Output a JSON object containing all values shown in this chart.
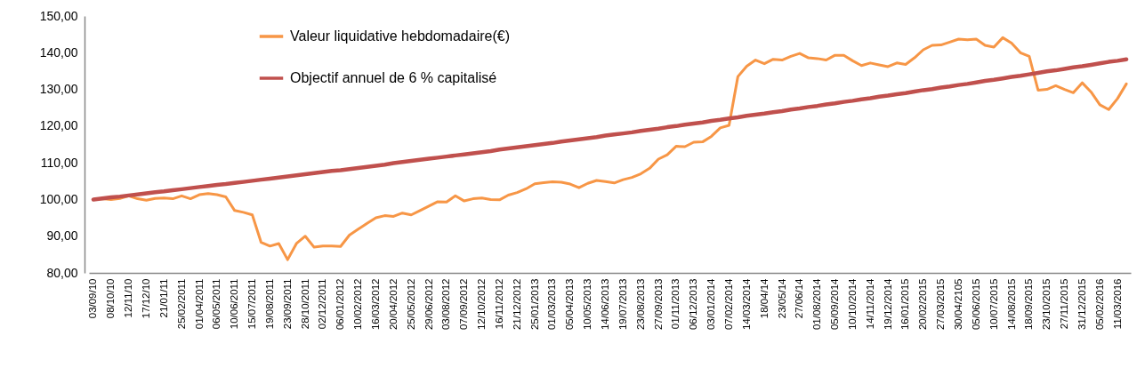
{
  "chart_data": {
    "type": "line",
    "categories": [
      "03/09/10",
      null,
      "08/10/10",
      null,
      "12/11/10",
      null,
      "17/12/10",
      null,
      "21/01/11",
      null,
      "25/02/2011",
      null,
      "01/04/2011",
      null,
      "06/05/2011",
      null,
      "10/06/2011",
      null,
      "15/07/2011",
      null,
      "19/08/2011",
      null,
      "23/09/2011",
      null,
      "28/10/2011",
      null,
      "02/12/2011",
      null,
      "06/01/2012",
      null,
      "10/02/2012",
      null,
      "16/03/2012",
      null,
      "20/04/2012",
      null,
      "25/05/2012",
      null,
      "29/06/2012",
      null,
      "03/08/2012",
      null,
      "07/09/2012",
      null,
      "12/10/2012",
      null,
      "16/11/2012",
      null,
      "21/12/2012",
      null,
      "25/01/2013",
      null,
      "01/03/2013",
      null,
      "05/04/2013",
      null,
      "10/05/2013",
      null,
      "14/06/2013",
      null,
      "19/07/2013",
      null,
      "23/08/2013",
      null,
      "27/09/2013",
      null,
      "01/11/2013",
      null,
      "06/12/2013",
      null,
      "03/01/2014",
      null,
      "07/02/2014",
      null,
      "14/03/2014",
      null,
      "18/04/14",
      null,
      "23/05/14",
      null,
      "27/06/14",
      null,
      "01/08/2014",
      null,
      "05/09/2014",
      null,
      "10/10/2014",
      null,
      "14/11/2014",
      null,
      "19/12/2014",
      null,
      "16/01/2015",
      null,
      "20/02/2015",
      null,
      "27/03/2015",
      null,
      "30/04/2105",
      null,
      "05/06/2015",
      null,
      "10/07/2015",
      null,
      "14/08/2015",
      null,
      "18/09/2015",
      null,
      "23/10/2015",
      null,
      "27/11/2015",
      null,
      "31/12/2015",
      null,
      "05/02/2016",
      null,
      "11/03/2016",
      null
    ],
    "series": [
      {
        "name": "Valeur liquidative hebdomadaire(€)",
        "color": "#f79646",
        "values": [
          100.0,
          100.2,
          100.0,
          100.3,
          101.0,
          100.2,
          99.8,
          100.3,
          100.4,
          100.2,
          101.0,
          100.2,
          101.3,
          101.6,
          101.3,
          100.7,
          97.0,
          96.5,
          95.8,
          88.3,
          87.3,
          88.0,
          83.6,
          88.0,
          90.0,
          87.0,
          87.3,
          87.3,
          87.2,
          90.3,
          91.9,
          93.5,
          95.0,
          95.6,
          95.4,
          96.3,
          95.8,
          97.0,
          98.2,
          99.4,
          99.3,
          101.0,
          99.6,
          100.2,
          100.4,
          100.0,
          99.9,
          101.2,
          101.9,
          102.9,
          104.3,
          104.6,
          104.8,
          104.7,
          104.2,
          103.2,
          104.4,
          105.2,
          104.9,
          104.5,
          105.4,
          106.0,
          107.0,
          108.5,
          111.0,
          112.2,
          114.5,
          114.4,
          115.6,
          115.7,
          117.2,
          119.5,
          120.2,
          133.5,
          136.3,
          138.0,
          137.0,
          138.2,
          138.0,
          139.0,
          139.8,
          138.6,
          138.4,
          138.0,
          139.3,
          139.3,
          137.8,
          136.5,
          137.2,
          136.7,
          136.2,
          137.2,
          136.8,
          138.6,
          140.8,
          142.0,
          142.1,
          142.9,
          143.7,
          143.5,
          143.7,
          142.0,
          141.5,
          144.1,
          142.6,
          140.0,
          139.0,
          129.8,
          130.0,
          131.0,
          130.0,
          129.1,
          131.8,
          129.3,
          125.8,
          124.5,
          127.5,
          131.5
        ]
      },
      {
        "name": "Objectif annuel de 6 % capitalisé",
        "color": "#c0504d",
        "values": [
          100.0,
          100.3,
          100.6,
          100.8,
          101.1,
          101.4,
          101.7,
          102.0,
          102.2,
          102.5,
          102.8,
          103.1,
          103.4,
          103.7,
          104.0,
          104.2,
          104.5,
          104.8,
          105.1,
          105.4,
          105.7,
          106.0,
          106.3,
          106.6,
          106.9,
          107.2,
          107.5,
          107.8,
          108.0,
          108.3,
          108.6,
          108.9,
          109.2,
          109.5,
          109.9,
          110.2,
          110.5,
          110.8,
          111.1,
          111.4,
          111.7,
          112.0,
          112.3,
          112.6,
          112.9,
          113.2,
          113.6,
          113.9,
          114.2,
          114.5,
          114.8,
          115.1,
          115.4,
          115.8,
          116.1,
          116.4,
          116.7,
          117.0,
          117.4,
          117.7,
          118.0,
          118.3,
          118.7,
          119.0,
          119.3,
          119.7,
          120.0,
          120.4,
          120.7,
          121.0,
          121.4,
          121.7,
          122.1,
          122.4,
          122.8,
          123.1,
          123.4,
          123.8,
          124.1,
          124.5,
          124.8,
          125.2,
          125.5,
          125.9,
          126.2,
          126.6,
          126.9,
          127.3,
          127.6,
          128.0,
          128.3,
          128.7,
          129.0,
          129.4,
          129.8,
          130.1,
          130.5,
          130.8,
          131.2,
          131.5,
          131.9,
          132.3,
          132.6,
          133.0,
          133.4,
          133.7,
          134.1,
          134.5,
          134.9,
          135.2,
          135.6,
          136.0,
          136.3,
          136.7,
          137.1,
          137.5,
          137.8,
          138.2
        ]
      }
    ],
    "ylim": [
      80,
      150
    ],
    "yticks": [
      {
        "value": 80,
        "label": "80,00"
      },
      {
        "value": 90,
        "label": "90,00"
      },
      {
        "value": 100,
        "label": "100,00"
      },
      {
        "value": 110,
        "label": "110,00"
      },
      {
        "value": 120,
        "label": "120,00"
      },
      {
        "value": 130,
        "label": "130,00"
      },
      {
        "value": 140,
        "label": "140,00"
      },
      {
        "value": 150,
        "label": "150,00"
      }
    ],
    "legend": "top left",
    "grid": false,
    "line_style": "solid"
  }
}
